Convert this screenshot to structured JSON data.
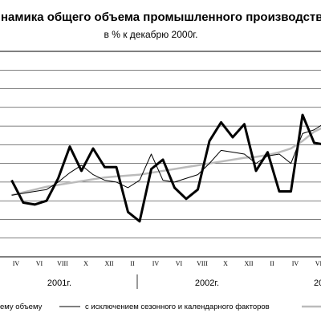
{
  "chart_data": {
    "type": "line",
    "title": "намика общего объема промышленного производств",
    "subtitle": "в % к декабрю 2000г.",
    "x_tick_labels": [
      "IV",
      "VI",
      "VIII",
      "X",
      "XII",
      "II",
      "IV",
      "VI",
      "VIII",
      "X",
      "XII",
      "II",
      "IV",
      "VI"
    ],
    "year_labels": [
      "2001г.",
      "2002г.",
      "20"
    ],
    "x": [
      1,
      2,
      3,
      4,
      5,
      6,
      7,
      8,
      9,
      10,
      11,
      12,
      13,
      14,
      15,
      16,
      17,
      18,
      19,
      20,
      21,
      22,
      23,
      24,
      25,
      26,
      27,
      28,
      29
    ],
    "ylim": [
      0,
      11
    ],
    "grid": true,
    "series": [
      {
        "name": "общему объему",
        "style": "thick",
        "color": "#000000",
        "values": [
          4.1,
          2.9,
          2.8,
          3.0,
          4.2,
          5.9,
          4.6,
          5.8,
          4.8,
          4.8,
          2.4,
          1.9,
          4.7,
          5.2,
          3.7,
          3.1,
          3.6,
          6.2,
          7.2,
          6.4,
          7.1,
          4.6,
          5.6,
          3.5,
          3.5,
          7.6,
          6.1,
          6.0,
          6.3
        ]
      },
      {
        "name": "с исключением сезонного и календарного факторов",
        "style": "thin",
        "color": "#000000",
        "values": [
          3.3,
          3.4,
          3.5,
          3.6,
          4.0,
          4.5,
          4.9,
          4.4,
          4.1,
          4.0,
          3.7,
          4.1,
          5.5,
          4.1,
          4.0,
          4.2,
          4.4,
          5.0,
          5.7,
          5.6,
          5.5,
          5.0,
          5.4,
          5.5,
          5.0,
          6.6,
          6.8,
          7.2,
          7.0
        ]
      },
      {
        "name": "",
        "style": "trend",
        "color": "#bbbbbb",
        "values": [
          3.3,
          3.45,
          3.6,
          3.75,
          3.85,
          3.95,
          4.05,
          4.15,
          4.25,
          4.3,
          4.35,
          4.4,
          4.5,
          4.6,
          4.7,
          4.8,
          4.9,
          5.0,
          5.1,
          5.2,
          5.3,
          5.35,
          5.45,
          5.6,
          5.8,
          6.2,
          6.7,
          7.0,
          7.2
        ]
      }
    ]
  },
  "legend": {
    "item1": "ему объему",
    "item2": "с исключением сезонного и календарного факторов"
  }
}
